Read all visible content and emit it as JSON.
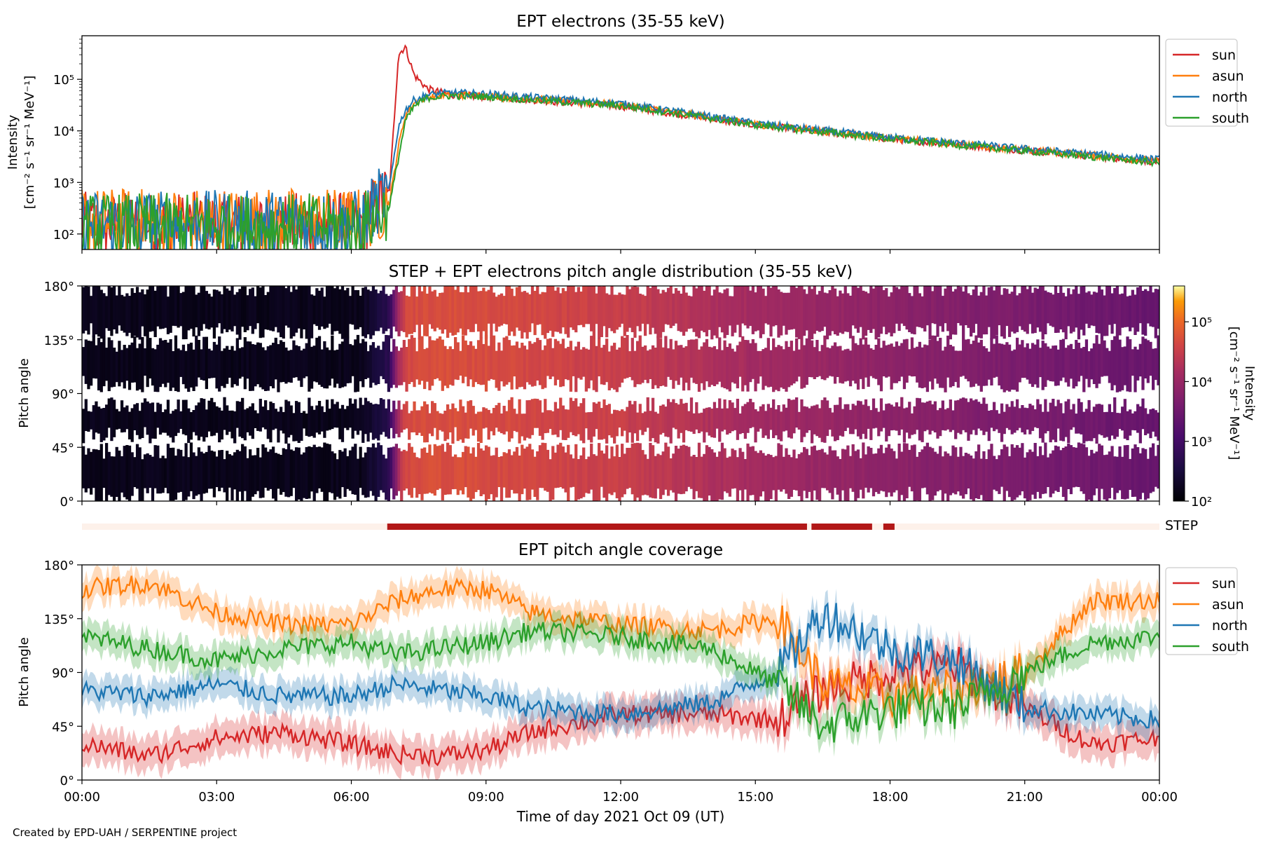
{
  "figure": {
    "credit": "Created by EPD-UAH / SERPENTINE project",
    "xlabel": "Time of day 2021 Oct 09 (UT)",
    "x_ticks": [
      "00:00",
      "03:00",
      "06:00",
      "09:00",
      "12:00",
      "15:00",
      "18:00",
      "21:00",
      "00:00"
    ]
  },
  "chart_data": [
    {
      "type": "line",
      "title": "EPT electrons (35-55 keV)",
      "ylabel_line1": "Intensity",
      "ylabel_line2": "[cm⁻² s⁻¹ sr⁻¹ MeV⁻¹]",
      "yscale": "log",
      "ylim": [
        50,
        700000
      ],
      "y_ticks": [
        "10²",
        "10³",
        "10⁴",
        "10⁵"
      ],
      "x_hours": [
        0,
        6.2,
        6.85,
        7.05,
        7.2,
        7.4,
        7.7,
        8.2,
        9,
        10,
        12,
        13.5,
        15,
        18,
        21,
        24
      ],
      "series": [
        {
          "name": "sun",
          "color": "#d62728",
          "values": [
            150,
            150,
            700,
            300000,
            430000,
            120000,
            65000,
            50000,
            46000,
            40000,
            30000,
            20000,
            13000,
            7000,
            4200,
            2500
          ]
        },
        {
          "name": "asun",
          "color": "#ff7f0e",
          "values": [
            180,
            180,
            400,
            5000,
            20000,
            35000,
            45000,
            50000,
            48000,
            42000,
            32000,
            21000,
            13500,
            7200,
            4300,
            2600
          ]
        },
        {
          "name": "north",
          "color": "#1f77b4",
          "values": [
            160,
            160,
            800,
            12000,
            25000,
            40000,
            50000,
            55000,
            52000,
            45000,
            34000,
            22000,
            14000,
            7500,
            4500,
            2800
          ]
        },
        {
          "name": "south",
          "color": "#2ca02c",
          "values": [
            140,
            140,
            350,
            3000,
            15000,
            30000,
            44000,
            48000,
            46000,
            40000,
            31000,
            20500,
            13000,
            7000,
            4100,
            2400
          ]
        }
      ],
      "legend_position": "outside-right"
    },
    {
      "type": "heatmap",
      "title": "STEP + EPT electrons pitch angle distribution (35-55 keV)",
      "ylabel": "Pitch angle",
      "y_ticks": [
        "0°",
        "45°",
        "90°",
        "135°",
        "180°"
      ],
      "ylim": [
        0,
        180
      ],
      "colorbar": {
        "label": "Intensity",
        "units": "[cm⁻² s⁻¹ sr⁻¹ MeV⁻¹]",
        "scale": "log",
        "ticks": [
          "10²",
          "10³",
          "10⁴",
          "10⁵"
        ],
        "colormap": "inferno"
      }
    },
    {
      "type": "bar",
      "label": "STEP",
      "segments_hours": [
        [
          6.8,
          16.15
        ],
        [
          16.25,
          17.6
        ],
        [
          17.85,
          18.1
        ]
      ],
      "color": "#b21818",
      "background": "#fdf1ea"
    },
    {
      "type": "line",
      "title": "EPT pitch angle coverage",
      "ylabel": "Pitch angle",
      "ylim": [
        0,
        180
      ],
      "y_ticks": [
        "0°",
        "45°",
        "90°",
        "135°",
        "180°"
      ],
      "x_hours": [
        0,
        1.5,
        3,
        4.5,
        6,
        7,
        8,
        9,
        10,
        12,
        14,
        15.5,
        16.5,
        18,
        19.5,
        21,
        22.5,
        24
      ],
      "series": [
        {
          "name": "sun",
          "color": "#d62728",
          "values": [
            30,
            20,
            35,
            40,
            30,
            22,
            20,
            25,
            40,
            55,
            55,
            50,
            75,
            90,
            95,
            60,
            30,
            35
          ]
        },
        {
          "name": "asun",
          "color": "#ff7f0e",
          "values": [
            160,
            165,
            140,
            130,
            130,
            150,
            160,
            160,
            140,
            130,
            125,
            135,
            80,
            70,
            75,
            90,
            150,
            150
          ]
        },
        {
          "name": "north",
          "color": "#1f77b4",
          "values": [
            75,
            70,
            80,
            70,
            70,
            80,
            75,
            70,
            60,
            55,
            65,
            90,
            140,
            110,
            100,
            60,
            55,
            50
          ]
        },
        {
          "name": "south",
          "color": "#2ca02c",
          "values": [
            120,
            110,
            100,
            110,
            115,
            105,
            110,
            115,
            125,
            120,
            110,
            80,
            45,
            60,
            60,
            90,
            115,
            120
          ]
        }
      ],
      "legend_position": "outside-right"
    }
  ]
}
